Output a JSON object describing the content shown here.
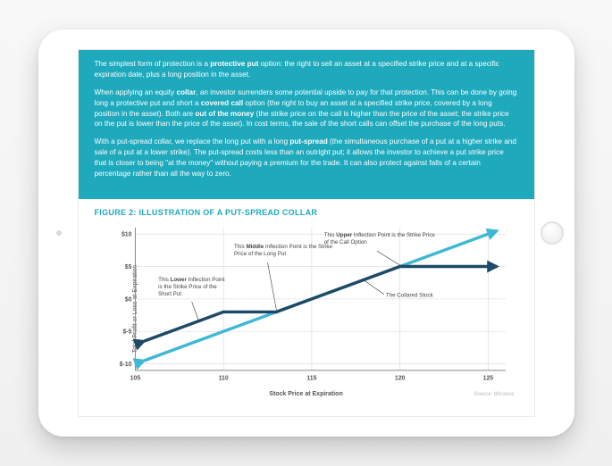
{
  "intro": {
    "p1a": "The simplest form of protection is a ",
    "p1b": "protective put",
    "p1c": " option: the right to sell an asset at a specified strike price and at a specific expiration date, plus a long position in the asset.",
    "p2a": "When applying an equity ",
    "p2b": "collar",
    "p2c": ", an investor surrenders some potential upside to pay for that protection. This can be done by going long a protective put and short a ",
    "p2d": "covered call",
    "p2e": " option (the right to buy an asset at a specified strike price, covered by a long position in the asset). Both are ",
    "p2f": "out of the money",
    "p2g": " (the strike price on the call is higher than the price of the asset; the strike price on the put is lower than the price of the asset). In cost terms, the sale of the short calls can offset the purchase of the long puts.",
    "p3a": "With a put-spread collar, we replace the long put with a long ",
    "p3b": "put-spread",
    "p3c": " (the simultaneous purchase of a put at a higher strike and sale of a put at a lower strike). The put-spread costs less than an outright put; it allows the investor to achieve a put strike price that is closer to being \"at the money\" without paying a premium for the trade. It can also protect against falls of a certain percentage rather than all the way to zero."
  },
  "figure": {
    "title": "FIGURE 2: ILLUSTRATION OF A PUT-SPREAD COLLAR",
    "ylabel": "Total Profit or Loss at Expiration",
    "xlabel": "Stock Price at Expiration",
    "source": "Source: bfinance",
    "yticks": [
      {
        "v": 10,
        "label": "$10"
      },
      {
        "v": 5,
        "label": "$5"
      },
      {
        "v": 0,
        "label": "$0"
      },
      {
        "v": -5,
        "label": "$-5"
      },
      {
        "v": -10,
        "label": "$-10"
      }
    ],
    "xticks": [
      {
        "v": 105,
        "label": "105"
      },
      {
        "v": 110,
        "label": "110"
      },
      {
        "v": 115,
        "label": "115"
      },
      {
        "v": 120,
        "label": "120"
      },
      {
        "v": 125,
        "label": "125"
      }
    ],
    "xlim": [
      105,
      126
    ],
    "ylim": [
      -11,
      11
    ],
    "grid_color": "#d9d9d9",
    "axis_color": "#888",
    "bg": "#ffffff",
    "series": {
      "stock": {
        "color": "#3fb8d4",
        "width": 3.5,
        "points": [
          [
            105.5,
            -9.5
          ],
          [
            125.5,
            10.5
          ]
        ]
      },
      "collar": {
        "color": "#1d4a66",
        "width": 3.5,
        "points": [
          [
            105.5,
            -6.5
          ],
          [
            108,
            -4
          ],
          [
            110,
            -2
          ],
          [
            113,
            -2
          ],
          [
            120,
            5
          ],
          [
            125.5,
            5
          ]
        ]
      }
    },
    "annotations": {
      "lower": {
        "t1": "This ",
        "b": "Lower",
        "t2": " Inflection Point is the Strike Price of the Short Put"
      },
      "middle": {
        "t1": "This ",
        "b": "Middle",
        "t2": " Inflection Point is the Strike Price of the Long Put"
      },
      "upper": {
        "t1": "This ",
        "b": "Upper",
        "t2": " Inflection Point is the Strike Price of the Call Option"
      },
      "stock": "The Collared Stock"
    },
    "tick_fontsize": 7,
    "ann_fontsize": 6.3
  },
  "palette": {
    "teal": "#1ea9bd",
    "dark": "#1d4a66",
    "light": "#3fb8d4"
  }
}
